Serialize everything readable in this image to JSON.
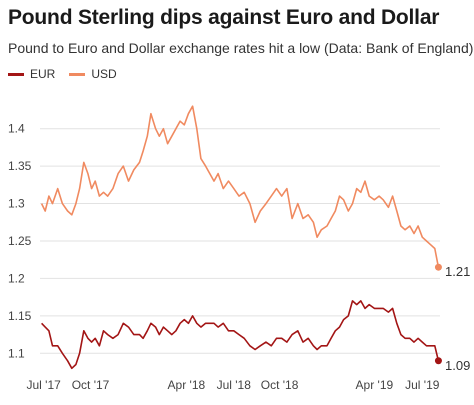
{
  "title": "Pound Sterling dips against Euro and Dollar",
  "subtitle": "Pound to Euro and Dollar exchange rates hit a low (Data: Bank of England)",
  "legend": [
    {
      "label": "EUR",
      "color": "#a31515"
    },
    {
      "label": "USD",
      "color": "#f08a60"
    }
  ],
  "chart_data": {
    "type": "line",
    "title": "Pound Sterling dips against Euro and Dollar",
    "xlabel": "",
    "ylabel": "",
    "ylim": [
      1.075,
      1.445
    ],
    "yticks": [
      "1.1",
      "1.15",
      "1.2",
      "1.25",
      "1.3",
      "1.35",
      "1.4"
    ],
    "xticks": [
      "Jul '17",
      "Oct '17",
      "Apr '18",
      "Jul '18",
      "Oct '18",
      "Apr '19",
      "Jul '19"
    ],
    "grid": true,
    "legend_position": "top-left",
    "series": [
      {
        "name": "USD",
        "color": "#f08a60",
        "end_label": "1.21",
        "points": [
          [
            "2017-07-01",
            1.3
          ],
          [
            "2017-07-08",
            1.29
          ],
          [
            "2017-07-15",
            1.31
          ],
          [
            "2017-07-22",
            1.3
          ],
          [
            "2017-08-01",
            1.32
          ],
          [
            "2017-08-10",
            1.3
          ],
          [
            "2017-08-20",
            1.29
          ],
          [
            "2017-08-28",
            1.285
          ],
          [
            "2017-09-05",
            1.3
          ],
          [
            "2017-09-12",
            1.32
          ],
          [
            "2017-09-20",
            1.355
          ],
          [
            "2017-09-28",
            1.34
          ],
          [
            "2017-10-05",
            1.32
          ],
          [
            "2017-10-12",
            1.33
          ],
          [
            "2017-10-20",
            1.31
          ],
          [
            "2017-10-28",
            1.315
          ],
          [
            "2017-11-05",
            1.31
          ],
          [
            "2017-11-15",
            1.32
          ],
          [
            "2017-11-25",
            1.34
          ],
          [
            "2017-12-05",
            1.35
          ],
          [
            "2017-12-15",
            1.33
          ],
          [
            "2017-12-25",
            1.345
          ],
          [
            "2018-01-05",
            1.355
          ],
          [
            "2018-01-12",
            1.37
          ],
          [
            "2018-01-20",
            1.39
          ],
          [
            "2018-01-27",
            1.42
          ],
          [
            "2018-02-05",
            1.4
          ],
          [
            "2018-02-12",
            1.39
          ],
          [
            "2018-02-20",
            1.4
          ],
          [
            "2018-02-28",
            1.38
          ],
          [
            "2018-03-08",
            1.39
          ],
          [
            "2018-03-16",
            1.4
          ],
          [
            "2018-03-24",
            1.41
          ],
          [
            "2018-04-01",
            1.405
          ],
          [
            "2018-04-09",
            1.42
          ],
          [
            "2018-04-17",
            1.43
          ],
          [
            "2018-04-25",
            1.4
          ],
          [
            "2018-05-03",
            1.36
          ],
          [
            "2018-05-12",
            1.35
          ],
          [
            "2018-05-20",
            1.34
          ],
          [
            "2018-05-28",
            1.33
          ],
          [
            "2018-06-05",
            1.34
          ],
          [
            "2018-06-15",
            1.32
          ],
          [
            "2018-06-25",
            1.33
          ],
          [
            "2018-07-05",
            1.32
          ],
          [
            "2018-07-15",
            1.31
          ],
          [
            "2018-07-25",
            1.315
          ],
          [
            "2018-08-05",
            1.3
          ],
          [
            "2018-08-15",
            1.275
          ],
          [
            "2018-08-25",
            1.29
          ],
          [
            "2018-09-05",
            1.3
          ],
          [
            "2018-09-15",
            1.31
          ],
          [
            "2018-09-25",
            1.32
          ],
          [
            "2018-10-05",
            1.31
          ],
          [
            "2018-10-15",
            1.32
          ],
          [
            "2018-10-25",
            1.28
          ],
          [
            "2018-11-05",
            1.3
          ],
          [
            "2018-11-15",
            1.28
          ],
          [
            "2018-11-25",
            1.285
          ],
          [
            "2018-12-05",
            1.275
          ],
          [
            "2018-12-12",
            1.255
          ],
          [
            "2018-12-20",
            1.265
          ],
          [
            "2018-12-31",
            1.27
          ],
          [
            "2019-01-08",
            1.28
          ],
          [
            "2019-01-16",
            1.29
          ],
          [
            "2019-01-24",
            1.31
          ],
          [
            "2019-02-01",
            1.305
          ],
          [
            "2019-02-10",
            1.29
          ],
          [
            "2019-02-18",
            1.3
          ],
          [
            "2019-02-26",
            1.32
          ],
          [
            "2019-03-06",
            1.315
          ],
          [
            "2019-03-14",
            1.33
          ],
          [
            "2019-03-22",
            1.31
          ],
          [
            "2019-04-01",
            1.305
          ],
          [
            "2019-04-10",
            1.31
          ],
          [
            "2019-04-18",
            1.305
          ],
          [
            "2019-04-28",
            1.295
          ],
          [
            "2019-05-06",
            1.31
          ],
          [
            "2019-05-14",
            1.29
          ],
          [
            "2019-05-22",
            1.27
          ],
          [
            "2019-05-30",
            1.265
          ],
          [
            "2019-06-08",
            1.27
          ],
          [
            "2019-06-16",
            1.26
          ],
          [
            "2019-06-24",
            1.27
          ],
          [
            "2019-07-02",
            1.255
          ],
          [
            "2019-07-10",
            1.25
          ],
          [
            "2019-07-18",
            1.245
          ],
          [
            "2019-07-26",
            1.24
          ],
          [
            "2019-08-02",
            1.215
          ]
        ]
      },
      {
        "name": "EUR",
        "color": "#a31515",
        "end_label": "1.09",
        "points": [
          [
            "2017-07-01",
            1.14
          ],
          [
            "2017-07-08",
            1.135
          ],
          [
            "2017-07-15",
            1.13
          ],
          [
            "2017-07-22",
            1.11
          ],
          [
            "2017-08-01",
            1.11
          ],
          [
            "2017-08-10",
            1.1
          ],
          [
            "2017-08-20",
            1.09
          ],
          [
            "2017-08-28",
            1.08
          ],
          [
            "2017-09-05",
            1.085
          ],
          [
            "2017-09-12",
            1.1
          ],
          [
            "2017-09-20",
            1.13
          ],
          [
            "2017-09-28",
            1.12
          ],
          [
            "2017-10-05",
            1.115
          ],
          [
            "2017-10-12",
            1.12
          ],
          [
            "2017-10-20",
            1.11
          ],
          [
            "2017-10-28",
            1.13
          ],
          [
            "2017-11-05",
            1.125
          ],
          [
            "2017-11-15",
            1.12
          ],
          [
            "2017-11-25",
            1.125
          ],
          [
            "2017-12-05",
            1.14
          ],
          [
            "2017-12-15",
            1.135
          ],
          [
            "2017-12-25",
            1.125
          ],
          [
            "2018-01-05",
            1.125
          ],
          [
            "2018-01-12",
            1.12
          ],
          [
            "2018-01-20",
            1.13
          ],
          [
            "2018-01-27",
            1.14
          ],
          [
            "2018-02-05",
            1.135
          ],
          [
            "2018-02-12",
            1.125
          ],
          [
            "2018-02-20",
            1.135
          ],
          [
            "2018-02-28",
            1.13
          ],
          [
            "2018-03-08",
            1.125
          ],
          [
            "2018-03-16",
            1.13
          ],
          [
            "2018-03-24",
            1.14
          ],
          [
            "2018-04-01",
            1.145
          ],
          [
            "2018-04-09",
            1.14
          ],
          [
            "2018-04-17",
            1.15
          ],
          [
            "2018-04-25",
            1.14
          ],
          [
            "2018-05-03",
            1.135
          ],
          [
            "2018-05-12",
            1.14
          ],
          [
            "2018-05-20",
            1.14
          ],
          [
            "2018-05-28",
            1.14
          ],
          [
            "2018-06-05",
            1.135
          ],
          [
            "2018-06-15",
            1.14
          ],
          [
            "2018-06-25",
            1.13
          ],
          [
            "2018-07-05",
            1.13
          ],
          [
            "2018-07-15",
            1.125
          ],
          [
            "2018-07-25",
            1.12
          ],
          [
            "2018-08-05",
            1.11
          ],
          [
            "2018-08-15",
            1.105
          ],
          [
            "2018-08-25",
            1.11
          ],
          [
            "2018-09-05",
            1.115
          ],
          [
            "2018-09-15",
            1.11
          ],
          [
            "2018-09-25",
            1.12
          ],
          [
            "2018-10-05",
            1.12
          ],
          [
            "2018-10-15",
            1.115
          ],
          [
            "2018-10-25",
            1.125
          ],
          [
            "2018-11-05",
            1.13
          ],
          [
            "2018-11-15",
            1.115
          ],
          [
            "2018-11-25",
            1.12
          ],
          [
            "2018-12-05",
            1.11
          ],
          [
            "2018-12-12",
            1.105
          ],
          [
            "2018-12-20",
            1.11
          ],
          [
            "2018-12-31",
            1.11
          ],
          [
            "2019-01-08",
            1.12
          ],
          [
            "2019-01-16",
            1.13
          ],
          [
            "2019-01-24",
            1.135
          ],
          [
            "2019-02-01",
            1.145
          ],
          [
            "2019-02-10",
            1.15
          ],
          [
            "2019-02-18",
            1.17
          ],
          [
            "2019-02-26",
            1.165
          ],
          [
            "2019-03-06",
            1.17
          ],
          [
            "2019-03-14",
            1.16
          ],
          [
            "2019-03-22",
            1.165
          ],
          [
            "2019-04-01",
            1.16
          ],
          [
            "2019-04-10",
            1.16
          ],
          [
            "2019-04-18",
            1.16
          ],
          [
            "2019-04-28",
            1.155
          ],
          [
            "2019-05-06",
            1.16
          ],
          [
            "2019-05-14",
            1.14
          ],
          [
            "2019-05-22",
            1.125
          ],
          [
            "2019-05-30",
            1.12
          ],
          [
            "2019-06-08",
            1.12
          ],
          [
            "2019-06-16",
            1.115
          ],
          [
            "2019-06-24",
            1.12
          ],
          [
            "2019-07-02",
            1.115
          ],
          [
            "2019-07-10",
            1.11
          ],
          [
            "2019-07-18",
            1.11
          ],
          [
            "2019-07-26",
            1.11
          ],
          [
            "2019-08-02",
            1.09
          ]
        ]
      }
    ]
  }
}
